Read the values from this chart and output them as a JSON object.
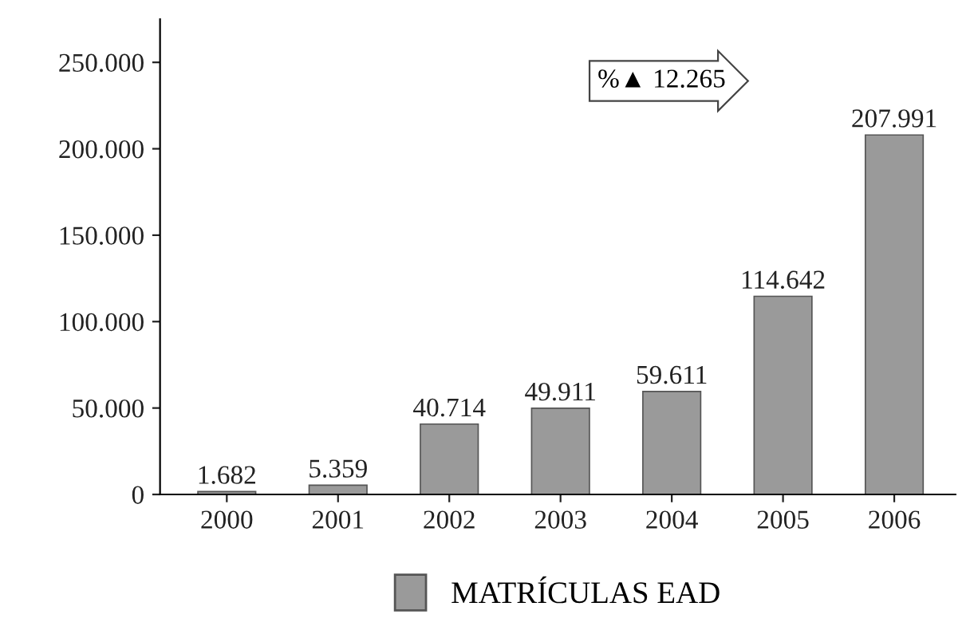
{
  "chart_data": {
    "type": "bar",
    "categories": [
      "2000",
      "2001",
      "2002",
      "2003",
      "2004",
      "2005",
      "2006"
    ],
    "series": [
      {
        "name": "MATRÍCULAS EAD",
        "color": "#9a9a9a",
        "values": [
          1682,
          5359,
          40714,
          49911,
          59611,
          114642,
          207991
        ],
        "value_labels": [
          "1.682",
          "5.359",
          "40.714",
          "49.911",
          "59.611",
          "114.642",
          "207.991"
        ]
      }
    ],
    "ylim": [
      0,
      275000
    ],
    "yticks": [
      0,
      {
        "value": 50000,
        "label": "50.000"
      },
      {
        "value": 100000,
        "label": "100.000"
      },
      {
        "value": 150000,
        "label": "150.000"
      },
      {
        "value": 200000,
        "label": "200.000"
      },
      {
        "value": 250000,
        "label": "250.000"
      }
    ],
    "annotations": [
      "%▲ 12.265"
    ],
    "grid": false,
    "legend": "bottom"
  }
}
